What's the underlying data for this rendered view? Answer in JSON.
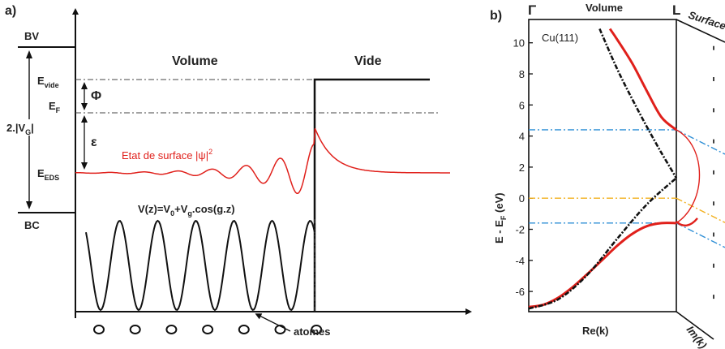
{
  "panel_a": {
    "tag": "a)",
    "labels": {
      "bv": "BV",
      "bc": "BC",
      "volume": "Volume",
      "vide": "Vide",
      "e_vide": "E",
      "e_vide_sub": "vide",
      "e_f": "E",
      "e_f_sub": "F",
      "e_eds": "E",
      "e_eds_sub": "EDS",
      "phi": "Φ",
      "epsilon": "ε",
      "gap": "2.|V",
      "gap_sub": "G",
      "gap_end": "|",
      "surface_state": "Etat de surface |ψ|",
      "surface_state_sup": "2",
      "potential": "V(z)=V",
      "potential_sub0": "0",
      "potential_mid": "+V",
      "potential_subg": "g",
      "potential_end": ".cos(g.z)",
      "atoms": "atomes"
    },
    "atom_count": 7,
    "colors": {
      "surface_state": "#e0201b",
      "lines": "#111111"
    }
  },
  "panel_b": {
    "tag": "b)",
    "gamma": "Γ",
    "l_point": "L",
    "volume": "Volume",
    "surface": "Surface",
    "crystal": "Cu(111)",
    "xlabel": "Re(k)",
    "xlabel_im": "Im(k)",
    "ylabel": "E - E",
    "ylabel_sub": "F",
    "ylabel_unit": " (eV)",
    "yticks": [
      "10",
      "8",
      "6",
      "4",
      "2",
      "0",
      "-2",
      "-4",
      "-6"
    ],
    "colors": {
      "band": "#e0201b",
      "fermi": "#f2b01e",
      "gap_edges": "#2f8fd6",
      "free_electron": "#111111"
    }
  },
  "chart_data": {
    "type": "line",
    "title": "",
    "xlabel": "Re(k)",
    "ylabel": "E - EF (eV)",
    "ylim": [
      -7.3,
      11.5
    ],
    "x_points": [
      "Γ",
      "L"
    ],
    "horizontal_lines": [
      {
        "y": 4.4,
        "color": "#2f8fd6"
      },
      {
        "y": 0,
        "color": "#f2b01e"
      },
      {
        "y": -1.6,
        "color": "#2f8fd6"
      }
    ],
    "series": [
      {
        "x": [
          0.0,
          0.1,
          0.2,
          0.3,
          0.4,
          0.5,
          0.6,
          0.7,
          0.8,
          0.9,
          1.0
        ],
        "y": [
          -7.0,
          -6.85,
          -6.4,
          -5.7,
          -4.85,
          -3.95,
          -3.05,
          -2.3,
          -1.8,
          -1.6,
          -1.6
        ]
      },
      {
        "x": [
          0.55,
          0.6,
          0.7,
          0.8,
          0.9,
          1.0
        ],
        "y": [
          10.9,
          10.2,
          8.7,
          6.9,
          5.2,
          4.4
        ]
      },
      {
        "x": [
          0.0,
          0.2,
          0.4,
          0.6,
          0.8,
          1.0
        ],
        "y": [
          -7.1,
          -6.5,
          -4.9,
          -2.6,
          -0.4,
          1.3
        ]
      },
      {
        "x": [
          0.48,
          0.6,
          0.7,
          0.8,
          0.9,
          1.0
        ],
        "y": [
          10.9,
          8.3,
          6.4,
          4.6,
          2.9,
          1.3
        ]
      }
    ]
  }
}
